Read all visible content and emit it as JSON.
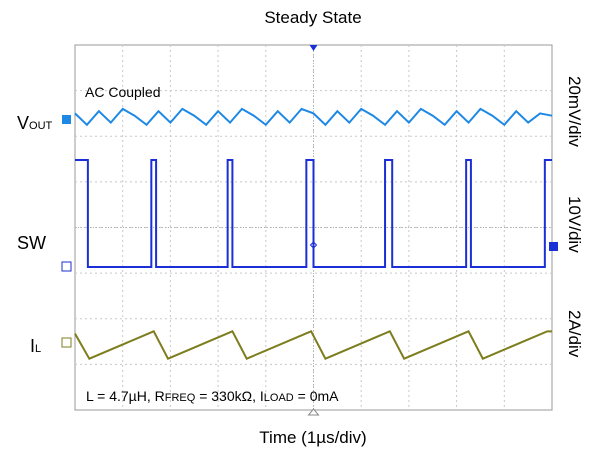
{
  "title": "Steady State",
  "xlabel": "Time (1µs/div)",
  "annotation_ac": "AC Coupled",
  "conditions": {
    "l_text": "L = 4.7µH, R",
    "rfreq_sub": "FREQ",
    "rfreq_text": " = 330kΩ, I",
    "iload_sub": "LOAD",
    "iload_text": " = 0mA"
  },
  "channels": {
    "vout": {
      "label_main": "V",
      "label_sub": "OUT",
      "scale": "20mV/div",
      "color": "#1e88e5"
    },
    "sw": {
      "label_main": "SW",
      "scale": "10V/div",
      "color": "#1a2fd6"
    },
    "il": {
      "label_main": "I",
      "label_sub": "L",
      "scale": "2A/div",
      "color": "#7d7d1e"
    }
  },
  "chart_data": {
    "type": "line",
    "title": "Steady State",
    "xlabel": "Time (1µs/div)",
    "x_range_us": [
      0,
      10
    ],
    "grid": true,
    "series": [
      {
        "name": "VOUT",
        "scale": "20mV/div",
        "coupling": "AC Coupled",
        "x_us": [
          0,
          0.25,
          0.5,
          0.75,
          1.0,
          1.25,
          1.5,
          1.75,
          2.0,
          2.25,
          2.5,
          2.75,
          3.0,
          3.25,
          3.5,
          3.75,
          4.0,
          4.25,
          4.5,
          4.75,
          5.0,
          5.25,
          5.5,
          5.75,
          6.0,
          6.25,
          6.5,
          6.75,
          7.0,
          7.25,
          7.5,
          7.75,
          8.0,
          8.25,
          8.5,
          8.75,
          9.0,
          9.25,
          9.5,
          9.75,
          10.0
        ],
        "values_mV": [
          2,
          -3,
          3,
          -2,
          4,
          1,
          -3,
          3,
          -2,
          4,
          1,
          -3,
          3,
          -2,
          4,
          1,
          -3,
          3,
          -2,
          4,
          2,
          -3,
          3,
          -2,
          4,
          1,
          -3,
          3,
          -2,
          4,
          1,
          -3,
          3,
          -2,
          4,
          1,
          -3,
          3,
          -2,
          2,
          1
        ]
      },
      {
        "name": "SW",
        "scale": "10V/div",
        "period_us": 1.0,
        "high_start_us": [
          0.15,
          1.0,
          2.0,
          3.0,
          4.0,
          5.0
        ],
        "high_end_us": [
          0.2,
          1.15,
          2.15,
          3.15,
          4.15,
          5.15
        ],
        "high_V": 10.5,
        "low_V": 0
      },
      {
        "name": "IL",
        "scale": "2A/div",
        "x_us": [
          0,
          0.2,
          1.0,
          1.15,
          2.0,
          2.15,
          3.0,
          3.15,
          4.0,
          4.15,
          5.0,
          5.15,
          6.0
        ],
        "values_A": [
          1.4,
          0.4,
          1.6,
          0.4,
          1.6,
          0.4,
          1.6,
          0.4,
          1.6,
          0.4,
          1.6,
          0.4,
          1.5
        ]
      }
    ]
  }
}
